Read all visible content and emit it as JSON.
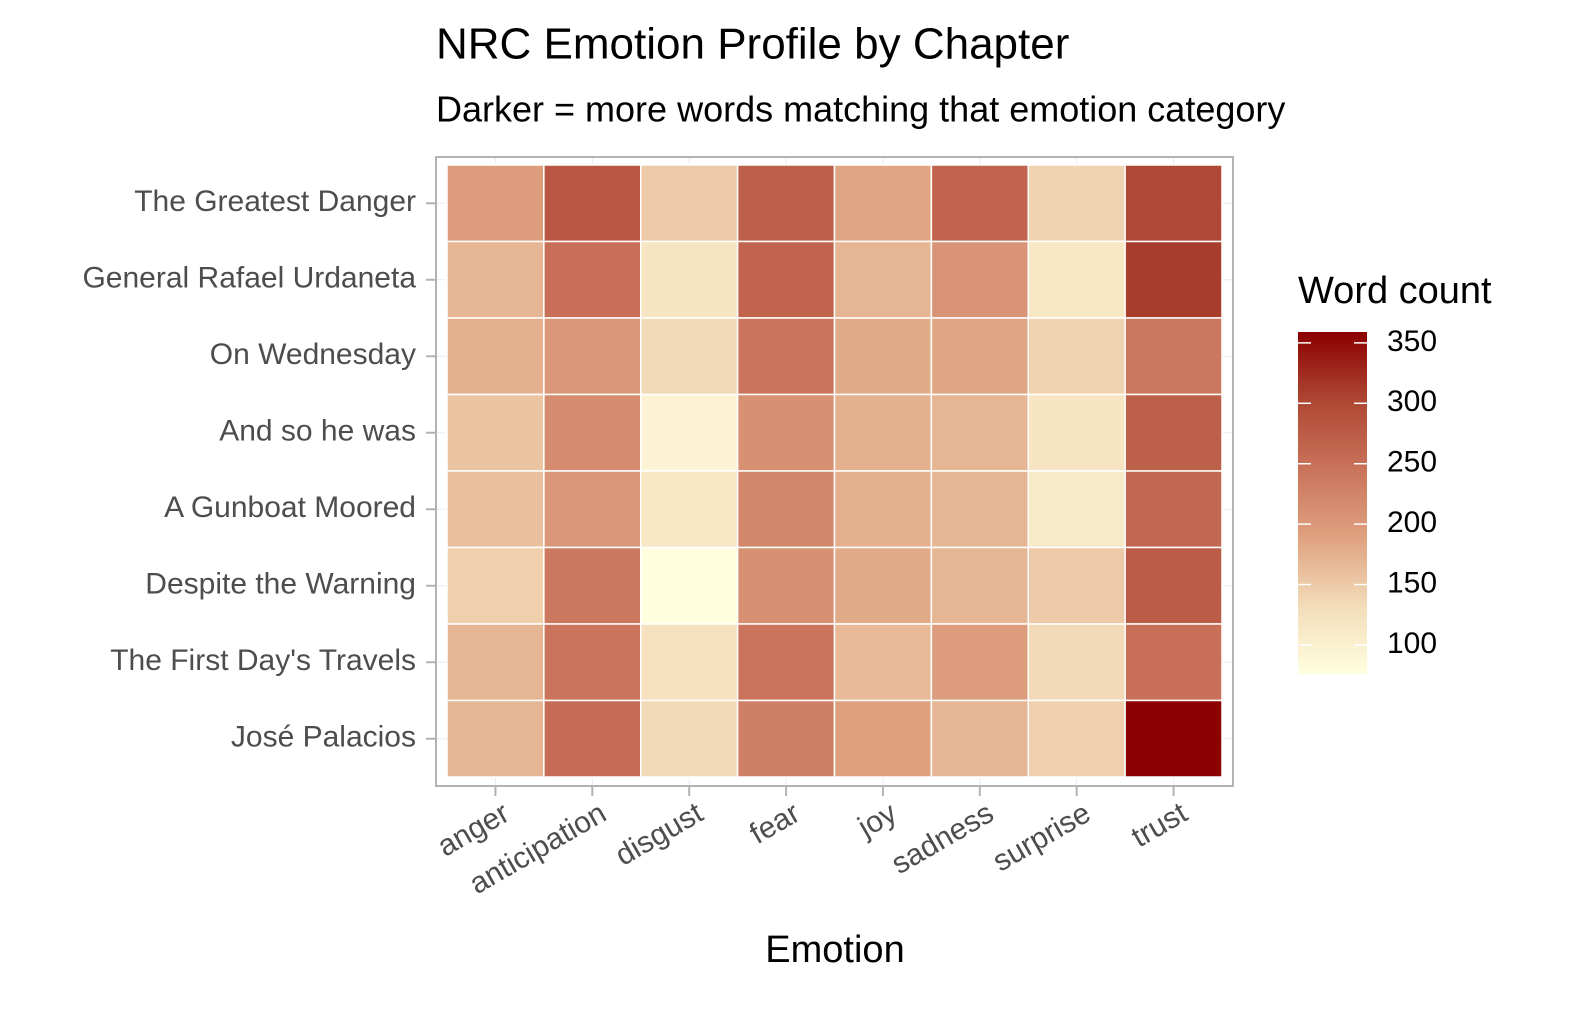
{
  "chart_data": {
    "type": "heatmap",
    "title": "NRC Emotion Profile by Chapter",
    "subtitle": "Darker = more words matching that emotion category",
    "x_label": "Emotion",
    "categories": [
      "anger",
      "anticipation",
      "disgust",
      "fear",
      "joy",
      "sadness",
      "surprise",
      "trust"
    ],
    "y_categories": [
      "The Greatest Danger",
      "General Rafael Urdaneta",
      "On Wednesday",
      "And so he was",
      "A Gunboat Moored",
      "Despite the Warning",
      "The First Day's Travels",
      "José Palacios"
    ],
    "values": [
      [
        195,
        280,
        150,
        270,
        185,
        265,
        140,
        300
      ],
      [
        170,
        250,
        120,
        265,
        170,
        205,
        115,
        310
      ],
      [
        175,
        200,
        135,
        245,
        180,
        185,
        140,
        240
      ],
      [
        155,
        215,
        95,
        210,
        175,
        170,
        120,
        270
      ],
      [
        160,
        200,
        115,
        220,
        175,
        170,
        110,
        260
      ],
      [
        145,
        240,
        76,
        210,
        180,
        170,
        150,
        275
      ],
      [
        170,
        245,
        125,
        245,
        165,
        195,
        135,
        250
      ],
      [
        170,
        255,
        135,
        230,
        190,
        170,
        145,
        359
      ]
    ],
    "legend_title": "Word count",
    "clim": [
      76,
      359
    ],
    "cticks": [
      100,
      150,
      200,
      250,
      300,
      350
    ],
    "colors": [
      "#FFFFE0",
      "#F3DCB9",
      "#DFA17F",
      "#C9735A",
      "#AE4733",
      "#8B0000"
    ]
  }
}
